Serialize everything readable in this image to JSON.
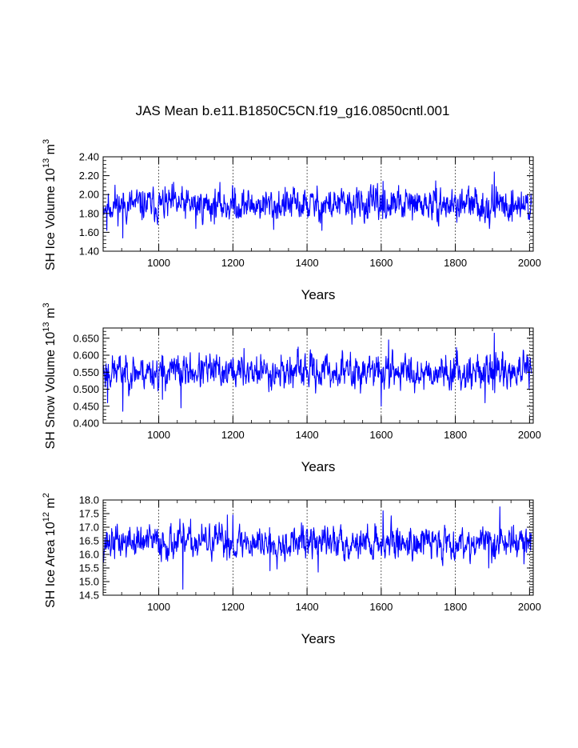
{
  "title": "JAS Mean b.e11.B1850C5CN.f19_g16.0850cntl.001",
  "series_color": "#0000ff",
  "chart_data": [
    {
      "type": "line",
      "name": "SH Ice Volume",
      "ylabel_main": "SH Ice Volume 10",
      "ylabel_exp": "13",
      "ylabel_unit": " m",
      "ylabel_unit_exp": "3",
      "xlabel": "Years",
      "xlim": [
        850,
        2010
      ],
      "ylim": [
        1.4,
        2.4
      ],
      "yticks": [
        "1.40",
        "1.60",
        "1.80",
        "2.00",
        "2.20",
        "2.40"
      ],
      "ytick_values": [
        1.4,
        1.6,
        1.8,
        2.0,
        2.2,
        2.4
      ],
      "xticks": [
        "1000",
        "1200",
        "1400",
        "1600",
        "1800",
        "2000"
      ],
      "xtick_values": [
        1000,
        1200,
        1400,
        1600,
        1800,
        2000
      ],
      "gridlines_x": true,
      "mean": 1.89,
      "amplitude": 0.09,
      "seed": 11,
      "extremes": [
        [
          860,
          1.62
        ],
        [
          882,
          2.1
        ],
        [
          903,
          1.54
        ],
        [
          1040,
          2.13
        ],
        [
          1100,
          1.64
        ],
        [
          1205,
          2.07
        ],
        [
          1310,
          1.63
        ],
        [
          1440,
          1.62
        ],
        [
          1605,
          2.14
        ],
        [
          1905,
          2.24
        ],
        [
          1892,
          1.64
        ]
      ]
    },
    {
      "type": "line",
      "name": "SH Snow Volume",
      "ylabel_main": "SH Snow Volume 10",
      "ylabel_exp": "13",
      "ylabel_unit": " m",
      "ylabel_unit_exp": "3",
      "xlabel": "Years",
      "xlim": [
        850,
        2010
      ],
      "ylim": [
        0.4,
        0.68
      ],
      "yticks": [
        "0.400",
        "0.450",
        "0.500",
        "0.550",
        "0.600",
        "0.650"
      ],
      "ytick_values": [
        0.4,
        0.45,
        0.5,
        0.55,
        0.6,
        0.65
      ],
      "xticks": [
        "1000",
        "1200",
        "1400",
        "1600",
        "1800",
        "2000"
      ],
      "xtick_values": [
        1000,
        1200,
        1400,
        1600,
        1800,
        2000
      ],
      "gridlines_x": true,
      "mean": 0.552,
      "amplitude": 0.026,
      "seed": 23,
      "extremes": [
        [
          862,
          0.46
        ],
        [
          903,
          0.435
        ],
        [
          1010,
          0.47
        ],
        [
          1060,
          0.445
        ],
        [
          1230,
          0.62
        ],
        [
          1600,
          0.45
        ],
        [
          1620,
          0.645
        ],
        [
          1905,
          0.665
        ],
        [
          1880,
          0.46
        ]
      ]
    },
    {
      "type": "line",
      "name": "SH Ice Area",
      "ylabel_main": "SH Ice Area 10",
      "ylabel_exp": "12",
      "ylabel_unit": " m",
      "ylabel_unit_exp": "2",
      "xlabel": "Years",
      "xlim": [
        850,
        2010
      ],
      "ylim": [
        14.5,
        18.0
      ],
      "yticks": [
        "14.5",
        "15.0",
        "15.5",
        "16.0",
        "16.5",
        "17.0",
        "17.5",
        "18.0"
      ],
      "ytick_values": [
        14.5,
        15.0,
        15.5,
        16.0,
        16.5,
        17.0,
        17.5,
        18.0
      ],
      "xticks": [
        "1000",
        "1200",
        "1400",
        "1600",
        "1800",
        "2000"
      ],
      "xtick_values": [
        1000,
        1200,
        1400,
        1600,
        1800,
        2000
      ],
      "gridlines_x": true,
      "mean": 16.45,
      "amplitude": 0.32,
      "seed": 37,
      "extremes": [
        [
          1065,
          14.72
        ],
        [
          1185,
          17.45
        ],
        [
          1200,
          17.45
        ],
        [
          1300,
          15.4
        ],
        [
          1430,
          15.35
        ],
        [
          1605,
          17.6
        ],
        [
          1890,
          15.5
        ],
        [
          1920,
          17.75
        ],
        [
          1985,
          15.65
        ]
      ]
    }
  ]
}
